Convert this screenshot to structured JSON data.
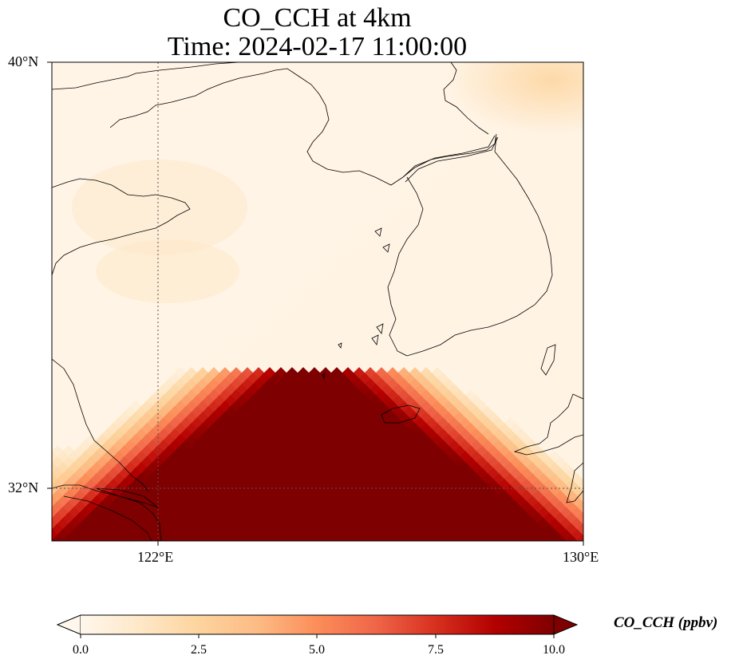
{
  "title": {
    "line1": "CO_CCH at 4km",
    "line2": "Time: 2024-02-17 11:00:00"
  },
  "axes": {
    "lat_labels": [
      "40°N",
      "32°N"
    ],
    "lon_labels": [
      "122°E",
      "130°E"
    ],
    "lon_range": [
      120,
      130
    ],
    "lat_range": [
      31,
      40
    ],
    "gridlines": {
      "lon": 122,
      "lat": 32,
      "style": "dotted"
    }
  },
  "colorbar": {
    "label": "CO_CCH (ppbv)",
    "ticks": [
      "0.0",
      "2.5",
      "5.0",
      "7.5",
      "10.0"
    ],
    "vmin": 0,
    "vmax": 10,
    "colormap": "OrRd",
    "extend": "both"
  },
  "colors": {
    "cmap_stops": [
      "#fff7ec",
      "#fee8c8",
      "#fdd49e",
      "#fdbb84",
      "#fc8d59",
      "#ef6548",
      "#d7301f",
      "#b30000",
      "#7f0000"
    ],
    "coastline": "#000000"
  }
}
